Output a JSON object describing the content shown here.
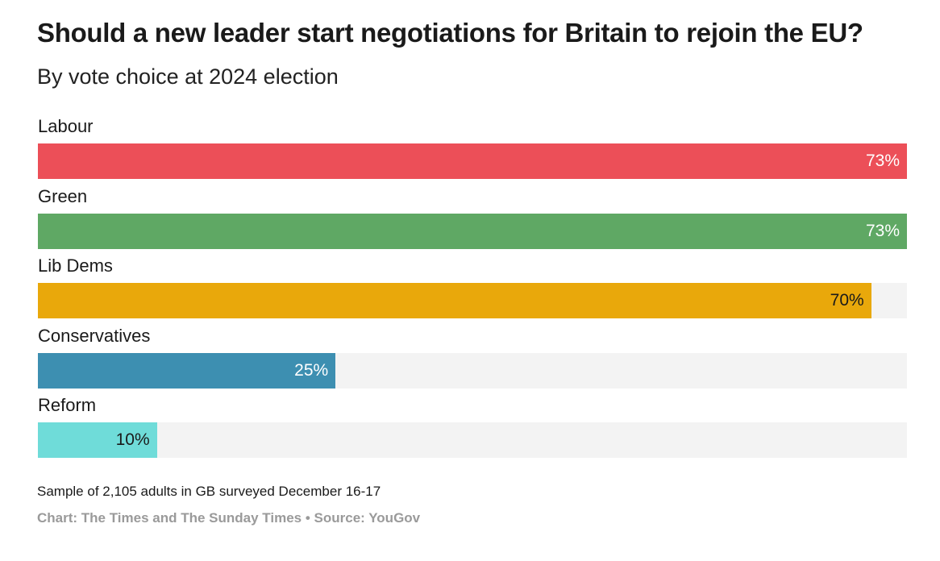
{
  "chart_data": {
    "type": "bar",
    "orientation": "horizontal",
    "title": "Should a new leader start negotiations for Britain to rejoin the EU?",
    "subtitle": "By vote choice at 2024 election",
    "categories": [
      "Labour",
      "Green",
      "Lib Dems",
      "Conservatives",
      "Reform"
    ],
    "values": [
      73,
      73,
      70,
      25,
      10
    ],
    "value_labels": [
      "73%",
      "73%",
      "70%",
      "25%",
      "10%"
    ],
    "colors": [
      "#ec4f58",
      "#5fa864",
      "#e9a80b",
      "#3d8fb1",
      "#6fdcd9"
    ],
    "label_colors": [
      "#ffffff",
      "#ffffff",
      "#1a1a1a",
      "#ffffff",
      "#1a1a1a"
    ],
    "xlim": [
      0,
      73
    ],
    "xlabel": "",
    "ylabel": "",
    "grid": false,
    "legend": "none"
  },
  "footer": {
    "note": "Sample of 2,105 adults in GB surveyed December 16-17",
    "source": "Chart: The Times and The Sunday Times • Source: YouGov"
  }
}
